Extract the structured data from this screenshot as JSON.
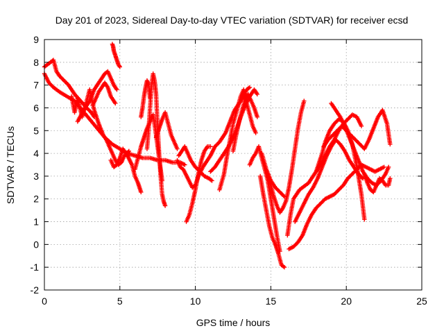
{
  "chart_data": {
    "type": "scatter",
    "title": "Day 201 of 2023, Sidereal Day-to-day VTEC variation (SDTVAR) for receiver ecsd",
    "xlabel": "GPS time / hours",
    "ylabel": "SDTVAR / TECUs",
    "xlim": [
      0,
      25
    ],
    "ylim": [
      -2,
      9
    ],
    "xticks": [
      "0",
      "5",
      "10",
      "15",
      "20",
      "25"
    ],
    "yticks": [
      "-2",
      "-1",
      "0",
      "1",
      "2",
      "3",
      "4",
      "5",
      "6",
      "7",
      "8",
      "9"
    ],
    "grid": true,
    "marker": "plus",
    "series": [
      {
        "name": "sdtvar",
        "color": "#ff0000",
        "tracks": [
          {
            "x": [
              0.0,
              0.3,
              0.6,
              1.0,
              1.5,
              2.0,
              2.5,
              3.0,
              3.5,
              4.0,
              4.5,
              5.0,
              5.5,
              6.0,
              6.5,
              7.0,
              7.5,
              8.0,
              8.5,
              9.0,
              9.3
            ],
            "y": [
              7.5,
              7.1,
              6.9,
              6.7,
              6.5,
              6.3,
              5.9,
              5.5,
              5.1,
              4.7,
              4.4,
              4.2,
              4.0,
              3.9,
              3.8,
              3.8,
              3.7,
              3.7,
              3.6,
              3.6,
              3.5
            ]
          },
          {
            "x": [
              0.0,
              0.2,
              0.4,
              0.6,
              0.8,
              1.0,
              1.3,
              1.6,
              2.0,
              2.4,
              2.8,
              3.1,
              3.3
            ],
            "y": [
              7.8,
              7.9,
              8.0,
              8.1,
              7.6,
              7.4,
              7.2,
              7.0,
              6.6,
              6.3,
              6.0,
              5.8,
              5.6
            ]
          },
          {
            "x": [
              1.8,
              2.0,
              2.2,
              2.5,
              2.8,
              3.0,
              3.3,
              3.6,
              3.9,
              4.1,
              4.3,
              4.5,
              4.7,
              4.9,
              5.1,
              5.3,
              5.6
            ],
            "y": [
              6.5,
              5.8,
              6.4,
              5.6,
              6.3,
              6.8,
              5.9,
              5.3,
              4.8,
              4.6,
              4.3,
              4.0,
              3.7,
              3.5,
              3.6,
              3.9,
              4.1
            ]
          },
          {
            "x": [
              2.2,
              2.6,
              3.0,
              3.3,
              3.6,
              3.8,
              4.0,
              4.2,
              4.4,
              4.6,
              4.8
            ],
            "y": [
              5.4,
              5.9,
              6.3,
              6.8,
              7.1,
              7.3,
              7.5,
              7.6,
              7.3,
              7.0,
              6.8
            ]
          },
          {
            "x": [
              3.2,
              3.4,
              3.6,
              3.8,
              4.0,
              4.2,
              4.4,
              4.5,
              4.6,
              4.7
            ],
            "y": [
              6.1,
              6.4,
              6.7,
              6.9,
              7.1,
              6.9,
              6.5,
              6.4,
              6.3,
              6.2
            ]
          },
          {
            "x": [
              4.5,
              4.55,
              4.6,
              4.7,
              4.8,
              4.9,
              5.0
            ],
            "y": [
              8.8,
              8.7,
              8.5,
              8.3,
              8.1,
              7.9,
              7.8
            ]
          },
          {
            "x": [
              4.4,
              4.6,
              4.8,
              5.0,
              5.2,
              5.5,
              5.8,
              6.0,
              6.2,
              6.4
            ],
            "y": [
              3.7,
              3.4,
              3.5,
              3.8,
              4.2,
              3.9,
              3.5,
              3.0,
              2.7,
              2.3
            ]
          },
          {
            "x": [
              6.0,
              6.2,
              6.4,
              6.6,
              6.8,
              7.0,
              7.2,
              7.4,
              7.6,
              7.8
            ],
            "y": [
              3.3,
              3.8,
              4.3,
              4.7,
              5.1,
              5.4,
              5.7,
              4.8,
              3.8,
              2.8
            ]
          },
          {
            "x": [
              6.8,
              6.9,
              7.0,
              7.1,
              7.2,
              7.3,
              7.4,
              7.5,
              7.6,
              7.7,
              7.8,
              7.9,
              8.0
            ],
            "y": [
              4.2,
              5.0,
              6.0,
              7.0,
              7.5,
              7.2,
              6.6,
              5.2,
              4.0,
              3.0,
              2.2,
              1.9,
              1.7
            ]
          },
          {
            "x": [
              6.4,
              6.5,
              6.6,
              6.7,
              6.8,
              6.9,
              7.0
            ],
            "y": [
              5.6,
              6.0,
              6.5,
              6.9,
              7.2,
              7.0,
              6.4
            ]
          },
          {
            "x": [
              7.4,
              7.6,
              7.8,
              8.0,
              8.2,
              8.4,
              8.6,
              8.8
            ],
            "y": [
              4.7,
              5.1,
              5.5,
              5.8,
              5.3,
              4.8,
              4.5,
              4.2
            ]
          },
          {
            "x": [
              8.8,
              9.0,
              9.2,
              9.5,
              9.8,
              10.0,
              10.2,
              10.5,
              10.8,
              11.0,
              11.3,
              11.6,
              12.0,
              12.3,
              12.6,
              13.0,
              13.4,
              13.6
            ],
            "y": [
              3.7,
              3.4,
              3.3,
              2.9,
              2.5,
              2.6,
              3.0,
              3.4,
              3.7,
              3.9,
              4.3,
              4.5,
              4.9,
              5.4,
              5.9,
              6.3,
              6.8,
              6.9
            ]
          },
          {
            "x": [
              9.4,
              9.6,
              9.8,
              10.0,
              10.2,
              10.4,
              10.6,
              10.8,
              11.0
            ],
            "y": [
              1.0,
              1.3,
              1.8,
              2.4,
              3.1,
              3.7,
              4.1,
              4.3,
              4.3
            ]
          },
          {
            "x": [
              8.9,
              9.1,
              9.3,
              9.5,
              9.7,
              10.0,
              10.3,
              10.6,
              10.9,
              11.1
            ],
            "y": [
              3.9,
              4.1,
              4.3,
              4.0,
              3.7,
              3.4,
              3.2,
              3.0,
              2.9,
              2.8
            ]
          },
          {
            "x": [
              11.0,
              11.3,
              11.6,
              11.9,
              12.2,
              12.5,
              12.8,
              13.0,
              13.3,
              13.6,
              13.9,
              14.1
            ],
            "y": [
              3.2,
              3.4,
              3.7,
              4.0,
              4.3,
              4.7,
              5.2,
              5.6,
              6.1,
              6.5,
              6.8,
              6.6
            ]
          },
          {
            "x": [
              11.6,
              11.9,
              12.1,
              12.3,
              12.5,
              12.8,
              13.0,
              13.2,
              13.4,
              13.6,
              13.8,
              14.0
            ],
            "y": [
              2.4,
              3.1,
              3.9,
              4.6,
              5.3,
              6.0,
              6.5,
              6.8,
              6.2,
              5.7,
              5.2,
              4.9
            ]
          },
          {
            "x": [
              12.5,
              12.7,
              12.9,
              13.1,
              13.3,
              13.5,
              13.7,
              13.9,
              14.1
            ],
            "y": [
              4.1,
              4.8,
              5.4,
              5.9,
              6.4,
              6.6,
              6.3,
              6.0,
              5.6
            ]
          },
          {
            "x": [
              13.6,
              13.8,
              14.0,
              14.2,
              14.4,
              14.6,
              14.8,
              15.0,
              15.2,
              15.4,
              15.6
            ],
            "y": [
              3.5,
              3.8,
              4.0,
              4.3,
              3.8,
              3.3,
              2.8,
              2.0,
              1.2,
              0.4,
              -0.3
            ]
          },
          {
            "x": [
              14.3,
              14.5,
              14.7,
              14.9,
              15.1,
              15.3,
              15.5,
              15.7,
              15.9
            ],
            "y": [
              3.0,
              2.2,
              1.5,
              0.8,
              0.3,
              0.0,
              -0.4,
              -0.9,
              -1.0
            ]
          },
          {
            "x": [
              14.8,
              15.0,
              15.2,
              15.4,
              15.6,
              15.8,
              16.0,
              16.2,
              16.4,
              16.6,
              16.8,
              17.0,
              17.2
            ],
            "y": [
              3.0,
              2.6,
              2.1,
              1.7,
              1.4,
              1.6,
              1.9,
              2.5,
              3.3,
              4.2,
              5.1,
              5.8,
              6.3
            ]
          },
          {
            "x": [
              16.1,
              16.3,
              16.5,
              16.7,
              16.9,
              17.1,
              17.3,
              17.5,
              17.7,
              17.9,
              18.1,
              18.3,
              18.6,
              18.9,
              19.2,
              19.5,
              19.8,
              20.1,
              20.4,
              20.7,
              21.0
            ],
            "y": [
              0.4,
              1.3,
              2.0,
              2.2,
              2.4,
              2.5,
              2.6,
              2.7,
              2.9,
              3.1,
              3.3,
              3.5,
              3.9,
              4.3,
              4.6,
              5.0,
              5.3,
              5.5,
              5.7,
              5.6,
              5.2
            ]
          },
          {
            "x": [
              16.2,
              16.5,
              16.8,
              17.1,
              17.4,
              17.7,
              18.0,
              18.3,
              18.6,
              18.9,
              19.2,
              19.5,
              19.8,
              20.1,
              20.4,
              20.7,
              21.0,
              21.3,
              21.6,
              21.9,
              22.2,
              22.5
            ],
            "y": [
              -0.2,
              -0.1,
              0.1,
              0.4,
              0.9,
              1.3,
              1.6,
              1.8,
              2.0,
              2.1,
              2.2,
              2.4,
              2.6,
              2.9,
              3.1,
              3.3,
              3.5,
              3.4,
              3.3,
              3.2,
              3.3,
              3.4
            ]
          },
          {
            "x": [
              16.6,
              16.9,
              17.2,
              17.5,
              17.8,
              18.1,
              18.4,
              18.7,
              19.0,
              19.3,
              19.6,
              19.9,
              20.2,
              20.5,
              20.8,
              21.1
            ],
            "y": [
              1.0,
              1.4,
              1.8,
              2.2,
              2.5,
              2.9,
              3.4,
              3.9,
              4.3,
              4.6,
              4.4,
              4.1,
              3.7,
              3.4,
              3.1,
              2.9
            ]
          },
          {
            "x": [
              18.0,
              18.2,
              18.4,
              18.6,
              18.9,
              19.2,
              19.5,
              19.8,
              20.1,
              20.4,
              20.7,
              21.0,
              21.2
            ],
            "y": [
              3.2,
              3.6,
              4.0,
              4.5,
              5.0,
              5.3,
              5.5,
              5.4,
              5.0,
              4.4,
              3.4,
              2.2,
              1.1
            ]
          },
          {
            "x": [
              18.5,
              18.8,
              19.1,
              19.4,
              19.7,
              20.0,
              20.3,
              20.6,
              20.9,
              21.2,
              21.5,
              21.8,
              22.1,
              22.4,
              22.7,
              22.9
            ],
            "y": [
              4.3,
              4.6,
              4.8,
              5.0,
              5.2,
              5.0,
              4.8,
              4.6,
              4.4,
              4.2,
              4.6,
              5.1,
              5.6,
              5.9,
              5.3,
              4.4
            ]
          },
          {
            "x": [
              19.0,
              19.3,
              19.6,
              19.9,
              20.2,
              20.5,
              20.8,
              21.1,
              21.4,
              21.7,
              22.0,
              22.3,
              22.6,
              22.8
            ],
            "y": [
              6.2,
              5.9,
              5.6,
              5.2,
              4.7,
              4.2,
              3.7,
              3.2,
              2.9,
              2.7,
              2.6,
              2.8,
              3.1,
              3.4
            ]
          },
          {
            "x": [
              21.2,
              21.4,
              21.6,
              21.8,
              22.0,
              22.2,
              22.4,
              22.6,
              22.8,
              22.9
            ],
            "y": [
              3.1,
              2.7,
              2.4,
              2.3,
              2.6,
              2.9,
              2.8,
              2.6,
              2.6,
              2.9
            ]
          },
          {
            "x": [
              14.4,
              14.7,
              15.0,
              15.3,
              15.6,
              15.9
            ],
            "y": [
              4.0,
              3.3,
              2.8,
              2.5,
              2.3,
              2.1
            ]
          }
        ]
      }
    ]
  }
}
